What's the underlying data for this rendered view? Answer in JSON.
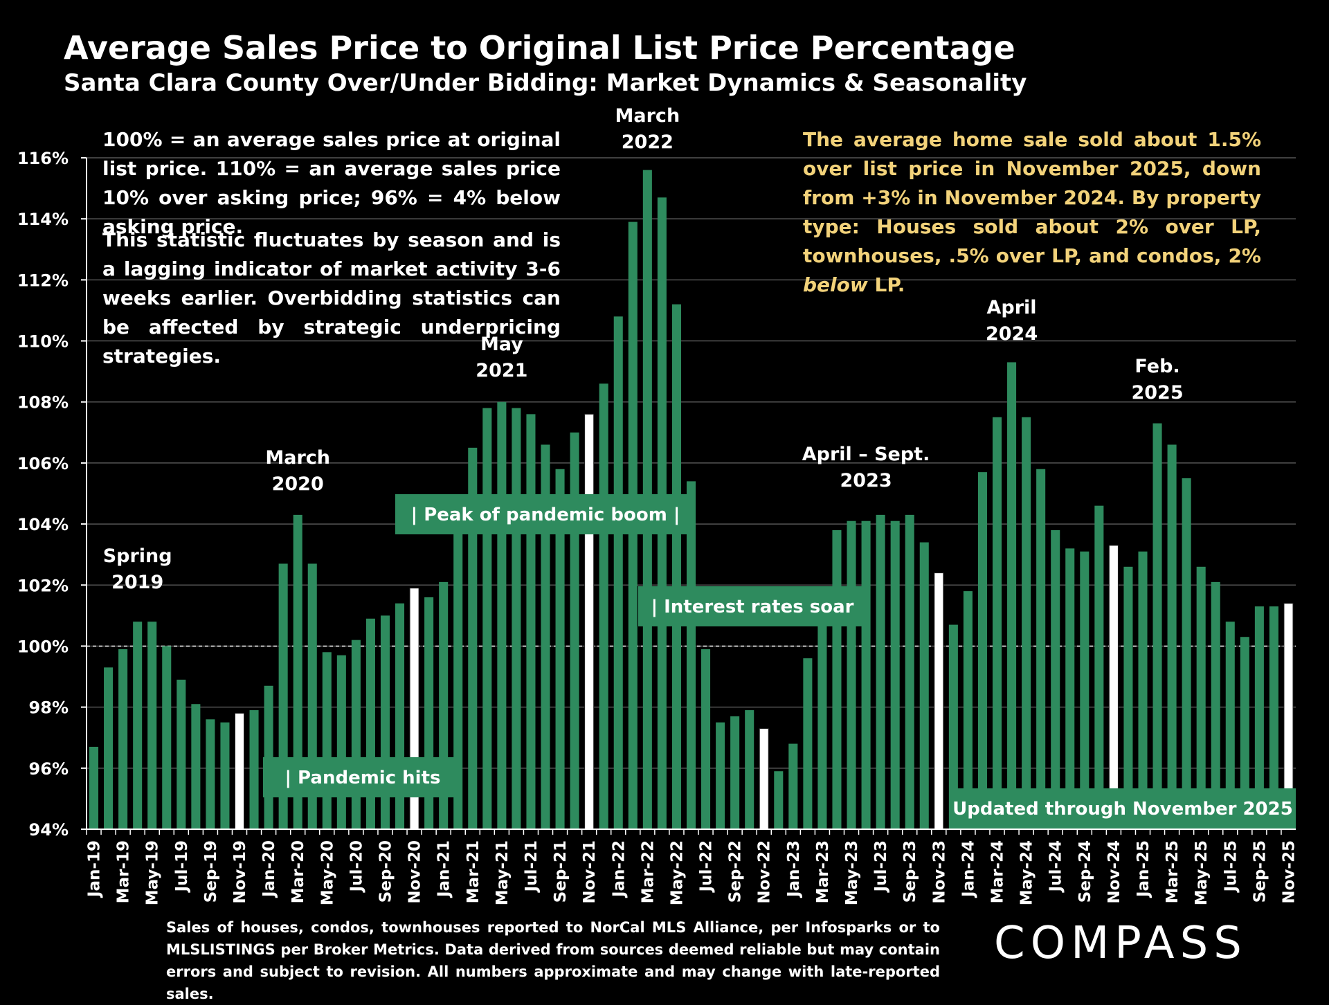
{
  "header": {
    "title": "Average Sales Price to Original List Price Percentage",
    "subtitle": "Santa Clara County Over/Under Bidding: Market Dynamics & Seasonality"
  },
  "notes": {
    "definition": "100% = an average sales price at original list price. 110% = an average sales price 10% over asking price; 96% = 4% below asking price.",
    "seasonality": "This statistic fluctuates by season and is a lagging indicator of market activity 3-6 weeks earlier. Overbidding statistics can be affected by strategic underpricing strategies.",
    "summary_before": "The average home sale sold about 1.5% over list price in November 2025, down from +3% in November 2024. By property type:  Houses sold about 2% over LP, townhouses, .5% over LP, and condos, 2% ",
    "summary_italic": "below",
    "summary_after": " LP."
  },
  "footer": {
    "source": "Sales of houses, condos, townhouses reported to NorCal MLS Alliance, per Infosparks or to MLSLISTINGS per Broker Metrics. Data derived from sources deemed reliable but may contain errors and subject to revision. All numbers approximate and may change with late-reported sales.",
    "logo": "COMPASS"
  },
  "colors": {
    "bar": "#2e8b5e",
    "highlight_bar": "#ffffff",
    "background": "#000000",
    "summary_text": "#f2d27a",
    "gridline": "#555555"
  },
  "chart_data": {
    "type": "bar",
    "ylim": [
      94,
      116
    ],
    "yticks": [
      "94%",
      "96%",
      "98%",
      "100%",
      "102%",
      "104%",
      "106%",
      "108%",
      "110%",
      "112%",
      "114%",
      "116%"
    ],
    "reference_line": 100,
    "categories": [
      "Jan-19",
      "Feb-19",
      "Mar-19",
      "Apr-19",
      "May-19",
      "Jun-19",
      "Jul-19",
      "Aug-19",
      "Sep-19",
      "Oct-19",
      "Nov-19",
      "Dec-19",
      "Jan-20",
      "Feb-20",
      "Mar-20",
      "Apr-20",
      "May-20",
      "Jun-20",
      "Jul-20",
      "Aug-20",
      "Sep-20",
      "Oct-20",
      "Nov-20",
      "Dec-20",
      "Jan-21",
      "Feb-21",
      "Mar-21",
      "Apr-21",
      "May-21",
      "Jun-21",
      "Jul-21",
      "Aug-21",
      "Sep-21",
      "Oct-21",
      "Nov-21",
      "Dec-21",
      "Jan-22",
      "Feb-22",
      "Mar-22",
      "Apr-22",
      "May-22",
      "Jun-22",
      "Jul-22",
      "Aug-22",
      "Sep-22",
      "Oct-22",
      "Nov-22",
      "Dec-22",
      "Jan-23",
      "Feb-23",
      "Mar-23",
      "Apr-23",
      "May-23",
      "Jun-23",
      "Jul-23",
      "Aug-23",
      "Sep-23",
      "Oct-23",
      "Nov-23",
      "Dec-23",
      "Jan-24",
      "Feb-24",
      "Mar-24",
      "Apr-24",
      "May-24",
      "Jun-24",
      "Jul-24",
      "Aug-24",
      "Sep-24",
      "Oct-24",
      "Nov-24",
      "Dec-24",
      "Jan-25",
      "Feb-25",
      "Mar-25",
      "Apr-25",
      "May-25",
      "Jun-25",
      "Jul-25",
      "Aug-25",
      "Sep-25",
      "Oct-25",
      "Nov-25"
    ],
    "tick_labels": [
      "Jan-19",
      "",
      "Mar-19",
      "",
      "May-19",
      "",
      "Jul-19",
      "",
      "Sep-19",
      "",
      "Nov-19",
      "",
      "Jan-20",
      "",
      "Mar-20",
      "",
      "May-20",
      "",
      "Jul-20",
      "",
      "Sep-20",
      "",
      "Nov-20",
      "",
      "Jan-21",
      "",
      "Mar-21",
      "",
      "May-21",
      "",
      "Jul-21",
      "",
      "Sep-21",
      "",
      "Nov-21",
      "",
      "Jan-22",
      "",
      "Mar-22",
      "",
      "May-22",
      "",
      "Jul-22",
      "",
      "Sep-22",
      "",
      "Nov-22",
      "",
      "Jan-23",
      "",
      "Mar-23",
      "",
      "May-23",
      "",
      "Jul-23",
      "",
      "Sep-23",
      "",
      "Nov-23",
      "",
      "Jan-24",
      "",
      "Mar-24",
      "",
      "May-24",
      "",
      "Jul-24",
      "",
      "Sep-24",
      "",
      "Nov-24",
      "",
      "Jan-25",
      "",
      "Mar-25",
      "",
      "May-25",
      "",
      "Jul-25",
      "",
      "Sep-25",
      "",
      "Nov-25"
    ],
    "values": [
      96.7,
      99.3,
      99.9,
      100.8,
      100.8,
      100.0,
      98.9,
      98.1,
      97.6,
      97.5,
      97.8,
      97.9,
      98.7,
      102.7,
      104.3,
      102.7,
      99.8,
      99.7,
      100.2,
      100.9,
      101.0,
      101.4,
      101.9,
      101.6,
      102.1,
      104.1,
      106.5,
      107.8,
      108.0,
      107.8,
      107.6,
      106.6,
      105.8,
      107.0,
      107.6,
      108.6,
      110.8,
      113.9,
      115.6,
      114.7,
      111.2,
      105.4,
      99.9,
      97.5,
      97.7,
      97.9,
      97.3,
      95.9,
      96.8,
      99.6,
      101.2,
      103.8,
      104.1,
      104.1,
      104.3,
      104.1,
      104.3,
      103.4,
      102.4,
      100.7,
      101.8,
      105.7,
      107.5,
      109.3,
      107.5,
      105.8,
      103.8,
      103.2,
      103.1,
      104.6,
      103.3,
      102.6,
      103.1,
      107.3,
      106.6,
      105.5,
      102.6,
      102.1,
      100.8,
      100.3,
      101.3,
      101.3,
      101.4
    ],
    "highlighted": [
      "Nov-19",
      "Nov-20",
      "Nov-21",
      "Nov-22",
      "Nov-23",
      "Nov-24",
      "Nov-25"
    ],
    "annotations": [
      {
        "label": [
          "Spring",
          "2019"
        ],
        "at": "Apr-19"
      },
      {
        "label": [
          "March",
          "2020"
        ],
        "at": "Mar-20"
      },
      {
        "label": [
          "May",
          "2021"
        ],
        "at": "May-21"
      },
      {
        "label": [
          "March",
          "2022"
        ],
        "at": "Mar-22"
      },
      {
        "label": [
          "April – Sept.",
          "2023"
        ],
        "at": "Jun-23"
      },
      {
        "label": [
          "April",
          "2024"
        ],
        "at": "Apr-24"
      },
      {
        "label": [
          "Feb.",
          "2025"
        ],
        "at": "Feb-25"
      }
    ],
    "callouts": [
      {
        "text": "| Pandemic hits",
        "at": "Mar-20"
      },
      {
        "text": "| Peak of pandemic boom  |",
        "at": "Jun-21"
      },
      {
        "text": "| Interest rates soar",
        "at": "Aug-22"
      },
      {
        "text": "Updated through November 2025",
        "at": "Apr-25"
      }
    ]
  }
}
